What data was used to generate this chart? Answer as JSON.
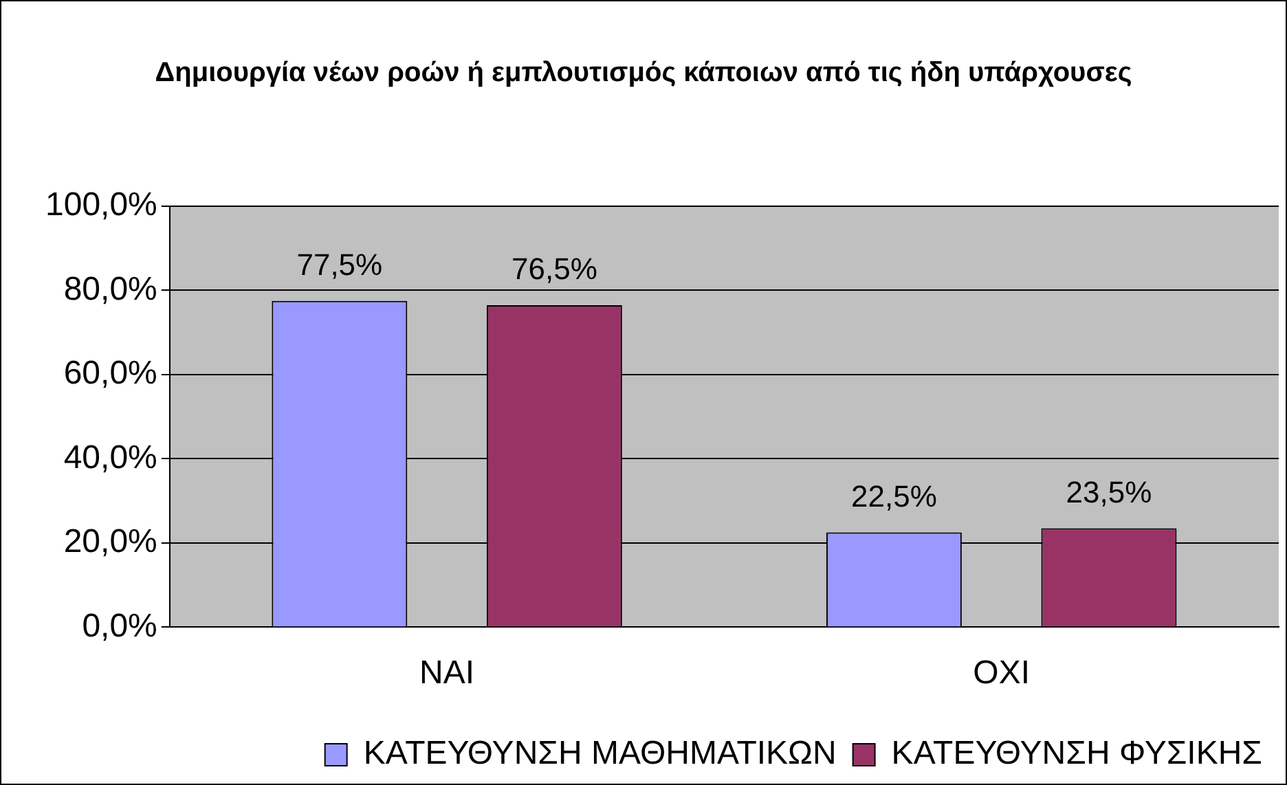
{
  "chart_data": {
    "type": "bar",
    "title": "Δημιουργία νέων ροών ή εμπλουτισμός κάποιων από τις ήδη υπάρχουσες",
    "categories": [
      "ΝΑΙ",
      "ΟΧΙ"
    ],
    "series": [
      {
        "name": "ΚΑΤΕΥΘΥΝΣΗ ΜΑΘΗΜΑΤΙΚΩΝ",
        "color": "#9999ff",
        "values": [
          77.5,
          22.5
        ],
        "value_labels": [
          "77,5%",
          "22,5%"
        ]
      },
      {
        "name": "ΚΑΤΕΥΘΥΝΣΗ ΦΥΣΙΚΗΣ",
        "color": "#993366",
        "values": [
          76.5,
          23.5
        ],
        "value_labels": [
          "76,5%",
          "23,5%"
        ]
      }
    ],
    "ylim": [
      0,
      100
    ],
    "yticks": [
      {
        "value": 0,
        "label": "0,0%"
      },
      {
        "value": 20,
        "label": "20,0%"
      },
      {
        "value": 40,
        "label": "40,0%"
      },
      {
        "value": 60,
        "label": "60,0%"
      },
      {
        "value": 80,
        "label": "80,0%"
      },
      {
        "value": 100,
        "label": "100,0%"
      }
    ],
    "grid": "y",
    "legend": "bottom"
  }
}
